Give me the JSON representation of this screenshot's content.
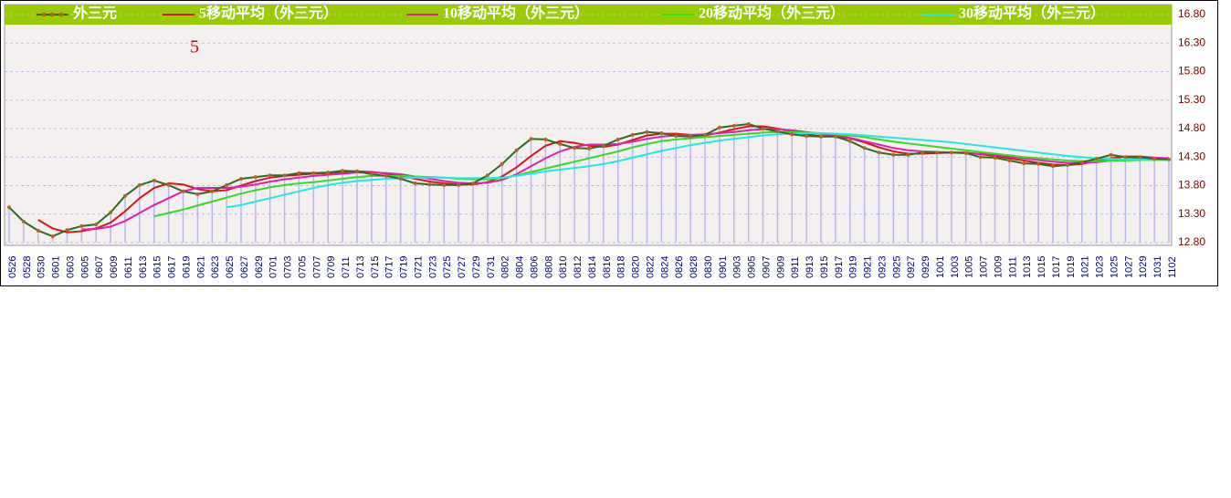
{
  "chart_data": {
    "type": "line",
    "annotation": "5",
    "categories": [
      "0526",
      "0528",
      "0530",
      "0601",
      "0603",
      "0605",
      "0607",
      "0609",
      "0611",
      "0613",
      "0615",
      "0617",
      "0619",
      "0621",
      "0623",
      "0625",
      "0627",
      "0629",
      "0701",
      "0703",
      "0705",
      "0707",
      "0709",
      "0711",
      "0713",
      "0715",
      "0717",
      "0719",
      "0721",
      "0723",
      "0725",
      "0727",
      "0729",
      "0731",
      "0802",
      "0804",
      "0806",
      "0808",
      "0810",
      "0812",
      "0814",
      "0816",
      "0818",
      "0820",
      "0822",
      "0824",
      "0826",
      "0828",
      "0830",
      "0901",
      "0903",
      "0905",
      "0907",
      "0909",
      "0911",
      "0913",
      "0915",
      "0917",
      "0919",
      "0921",
      "0923",
      "0925",
      "0927",
      "0929",
      "1001",
      "1003",
      "1005",
      "1007",
      "1009",
      "1011",
      "1013",
      "1015",
      "1017",
      "1019",
      "1021",
      "1023",
      "1025",
      "1027",
      "1029",
      "1031",
      "1102"
    ],
    "series": [
      {
        "name": "外三元",
        "color": "#2e6b1f",
        "marker_color": "#b5651d",
        "bar_color": "#b8b8f0",
        "values": [
          13.42,
          13.17,
          13.01,
          12.91,
          13.02,
          13.09,
          13.12,
          13.33,
          13.62,
          13.81,
          13.89,
          13.81,
          13.7,
          13.65,
          13.7,
          13.81,
          13.92,
          13.95,
          13.98,
          13.98,
          14.02,
          14.02,
          14.03,
          14.06,
          14.05,
          14.0,
          13.97,
          13.92,
          13.84,
          13.82,
          13.81,
          13.81,
          13.84,
          13.98,
          14.18,
          14.42,
          14.62,
          14.61,
          14.53,
          14.46,
          14.45,
          14.5,
          14.61,
          14.69,
          14.74,
          14.72,
          14.67,
          14.66,
          14.69,
          14.82,
          14.85,
          14.88,
          14.8,
          14.75,
          14.7,
          14.67,
          14.66,
          14.66,
          14.58,
          14.46,
          14.38,
          14.34,
          14.34,
          14.38,
          14.38,
          14.38,
          14.37,
          14.3,
          14.29,
          14.24,
          14.19,
          14.18,
          14.14,
          14.16,
          14.21,
          14.27,
          14.34,
          14.3,
          14.3,
          14.27,
          14.26
        ]
      },
      {
        "name": "5移动平均（外三元）",
        "color": "#d81818",
        "values": [
          null,
          null,
          13.2,
          13.05,
          12.98,
          13.0,
          13.05,
          13.15,
          13.35,
          13.58,
          13.76,
          13.84,
          13.82,
          13.74,
          13.7,
          13.72,
          13.8,
          13.88,
          13.94,
          13.97,
          13.99,
          14.01,
          14.02,
          14.04,
          14.05,
          14.04,
          14.01,
          13.97,
          13.92,
          13.87,
          13.84,
          13.82,
          13.82,
          13.86,
          13.96,
          14.12,
          14.32,
          14.5,
          14.58,
          14.55,
          14.5,
          14.48,
          14.52,
          14.6,
          14.68,
          14.71,
          14.71,
          14.69,
          14.68,
          14.73,
          14.79,
          14.84,
          14.84,
          14.8,
          14.75,
          14.7,
          14.67,
          14.66,
          14.63,
          14.56,
          14.47,
          14.4,
          14.36,
          14.36,
          14.37,
          14.38,
          14.38,
          14.35,
          14.32,
          14.28,
          14.24,
          14.2,
          14.17,
          14.16,
          14.18,
          14.23,
          14.28,
          14.31,
          14.31,
          14.29,
          14.27
        ]
      },
      {
        "name": "10移动平均（外三元）",
        "color": "#e020b0",
        "values": [
          null,
          null,
          null,
          null,
          null,
          13.03,
          13.04,
          13.08,
          13.18,
          13.32,
          13.46,
          13.58,
          13.7,
          13.76,
          13.76,
          13.76,
          13.78,
          13.82,
          13.87,
          13.91,
          13.94,
          13.97,
          13.99,
          14.01,
          14.03,
          14.03,
          14.02,
          14.0,
          13.96,
          13.92,
          13.88,
          13.85,
          13.84,
          13.85,
          13.9,
          14.0,
          14.14,
          14.28,
          14.4,
          14.48,
          14.52,
          14.52,
          14.53,
          14.57,
          14.62,
          14.66,
          14.68,
          14.69,
          14.7,
          14.72,
          14.74,
          14.77,
          14.79,
          14.79,
          14.77,
          14.74,
          14.71,
          14.68,
          14.64,
          14.58,
          14.52,
          14.46,
          14.42,
          14.4,
          14.39,
          14.38,
          14.37,
          14.36,
          14.34,
          14.31,
          14.28,
          14.25,
          14.22,
          14.2,
          14.2,
          14.21,
          14.24,
          14.26,
          14.28,
          14.29,
          14.28
        ]
      },
      {
        "name": "20移动平均（外三元）",
        "color": "#33dd22",
        "values": [
          null,
          null,
          null,
          null,
          null,
          null,
          null,
          null,
          null,
          null,
          13.26,
          13.32,
          13.38,
          13.45,
          13.52,
          13.59,
          13.66,
          13.72,
          13.77,
          13.81,
          13.84,
          13.86,
          13.89,
          13.92,
          13.95,
          13.97,
          13.97,
          13.97,
          13.96,
          13.95,
          13.94,
          13.92,
          13.91,
          13.91,
          13.93,
          13.98,
          14.04,
          14.1,
          14.16,
          14.22,
          14.28,
          14.34,
          14.4,
          14.47,
          14.53,
          14.58,
          14.61,
          14.63,
          14.65,
          14.67,
          14.69,
          14.71,
          14.73,
          14.74,
          14.74,
          14.73,
          14.72,
          14.7,
          14.68,
          14.65,
          14.61,
          14.57,
          14.54,
          14.51,
          14.48,
          14.45,
          14.42,
          14.39,
          14.36,
          14.33,
          14.3,
          14.28,
          14.26,
          14.24,
          14.23,
          14.23,
          14.24,
          14.24,
          14.25,
          14.25,
          14.25
        ]
      },
      {
        "name": "30移动平均（外三元）",
        "color": "#22e8e8",
        "values": [
          null,
          null,
          null,
          null,
          null,
          null,
          null,
          null,
          null,
          null,
          null,
          null,
          null,
          null,
          null,
          13.42,
          13.46,
          13.52,
          13.58,
          13.64,
          13.7,
          13.76,
          13.81,
          13.85,
          13.88,
          13.9,
          13.92,
          13.93,
          13.94,
          13.94,
          13.94,
          13.93,
          13.93,
          13.93,
          13.94,
          13.97,
          14.01,
          14.05,
          14.08,
          14.11,
          14.14,
          14.18,
          14.23,
          14.29,
          14.35,
          14.41,
          14.46,
          14.51,
          14.55,
          14.59,
          14.62,
          14.65,
          14.68,
          14.7,
          14.71,
          14.72,
          14.72,
          14.71,
          14.7,
          14.68,
          14.66,
          14.64,
          14.62,
          14.6,
          14.58,
          14.56,
          14.53,
          14.5,
          14.47,
          14.44,
          14.41,
          14.38,
          14.35,
          14.32,
          14.3,
          14.28,
          14.27,
          14.26,
          14.26,
          14.26,
          14.25
        ]
      }
    ],
    "ylim": [
      12.8,
      16.8
    ],
    "yticks": [
      {
        "value": 12.8,
        "label": "12.80"
      },
      {
        "value": 13.3,
        "label": "13.30"
      },
      {
        "value": 13.8,
        "label": "13.80"
      },
      {
        "value": 14.3,
        "label": "14.30"
      },
      {
        "value": 14.8,
        "label": "14.80"
      },
      {
        "value": 15.3,
        "label": "15.30"
      },
      {
        "value": 15.8,
        "label": "15.80"
      },
      {
        "value": 16.3,
        "label": "16.30"
      },
      {
        "value": 16.8,
        "label": "16.80"
      }
    ],
    "grid": true
  }
}
